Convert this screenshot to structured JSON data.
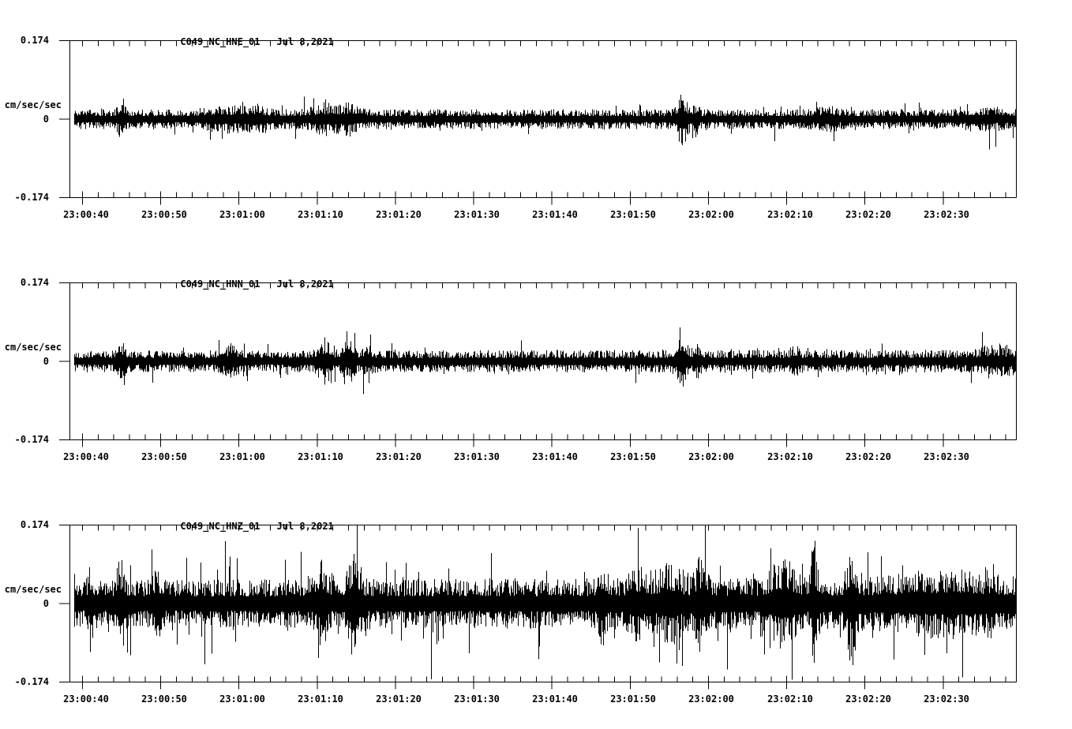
{
  "page": {
    "background_color": "#ffffff",
    "trace_color": "#000000",
    "date_label": "Jul 8,2021"
  },
  "chart_data": [
    {
      "type": "line",
      "chart_kind": "seismogram",
      "title": "C049_NC_HNE_01",
      "date": "Jul 8,2021",
      "ylabel": "cm/sec/sec",
      "ylim": [
        -0.174,
        0.174
      ],
      "yticks": [
        0.174,
        0,
        -0.174
      ],
      "ytick_labels": [
        "0.174",
        "0",
        "-0.174"
      ],
      "x_start": "23:00:38",
      "x_end": "23:02:39",
      "x_major_tick_seconds": 10,
      "x_minor_tick_seconds": 2,
      "x_tick_labels": [
        "23:00:40",
        "23:00:50",
        "23:01:00",
        "23:01:10",
        "23:01:20",
        "23:01:30",
        "23:01:40",
        "23:01:50",
        "23:02:00",
        "23:02:10",
        "23:02:20",
        "23:02:30"
      ],
      "grid": false,
      "legend": false,
      "waveform_model": {
        "seed": 11,
        "base_amplitude": 0.022,
        "max_amplitude": 0.08,
        "amplitude_ramp": 0.0,
        "spike_probability": 0.05,
        "spike_gain": 1.0,
        "envelope_bumps": [
          {
            "t": 45.0,
            "amp": 0.03,
            "width": 0.5
          },
          {
            "t": 58.0,
            "amp": 0.01,
            "width": 2.5
          },
          {
            "t": 62.0,
            "amp": 0.012,
            "width": 2.0
          },
          {
            "t": 71.0,
            "amp": 0.016,
            "width": 2.0
          },
          {
            "t": 74.0,
            "amp": 0.016,
            "width": 1.2
          },
          {
            "t": 116.6,
            "amp": 0.042,
            "width": 0.7
          },
          {
            "t": 118.3,
            "amp": 0.02,
            "width": 0.5
          },
          {
            "t": 135.0,
            "amp": 0.01,
            "width": 1.5
          },
          {
            "t": 155.0,
            "amp": 0.008,
            "width": 3.0
          }
        ]
      }
    },
    {
      "type": "line",
      "chart_kind": "seismogram",
      "title": "C049_NC_HNN_01",
      "date": "Jul 8,2021",
      "ylabel": "cm/sec/sec",
      "ylim": [
        -0.174,
        0.174
      ],
      "yticks": [
        0.174,
        0,
        -0.174
      ],
      "ytick_labels": [
        "0.174",
        "0",
        "-0.174"
      ],
      "x_start": "23:00:38",
      "x_end": "23:02:39",
      "x_major_tick_seconds": 10,
      "x_minor_tick_seconds": 2,
      "x_tick_labels": [
        "23:00:40",
        "23:00:50",
        "23:01:00",
        "23:01:10",
        "23:01:20",
        "23:01:30",
        "23:01:40",
        "23:01:50",
        "23:02:00",
        "23:02:10",
        "23:02:20",
        "23:02:30"
      ],
      "grid": false,
      "legend": false,
      "waveform_model": {
        "seed": 22,
        "base_amplitude": 0.024,
        "max_amplitude": 0.075,
        "amplitude_ramp": 0.05,
        "spike_probability": 0.05,
        "spike_gain": 1.0,
        "envelope_bumps": [
          {
            "t": 45.0,
            "amp": 0.026,
            "width": 0.5
          },
          {
            "t": 59.0,
            "amp": 0.014,
            "width": 1.2
          },
          {
            "t": 70.8,
            "amp": 0.03,
            "width": 1.0
          },
          {
            "t": 74.0,
            "amp": 0.024,
            "width": 0.9
          },
          {
            "t": 76.5,
            "amp": 0.014,
            "width": 0.7
          },
          {
            "t": 116.6,
            "amp": 0.034,
            "width": 0.8
          },
          {
            "t": 118.5,
            "amp": 0.018,
            "width": 0.5
          },
          {
            "t": 131.0,
            "amp": 0.016,
            "width": 0.6
          },
          {
            "t": 157.0,
            "amp": 0.012,
            "width": 2.5
          }
        ]
      }
    },
    {
      "type": "line",
      "chart_kind": "seismogram",
      "title": "C049_NC_HNZ_01",
      "date": "Jul 8,2021",
      "ylabel": "cm/sec/sec",
      "ylim": [
        -0.174,
        0.174
      ],
      "yticks": [
        0.174,
        0,
        -0.174
      ],
      "ytick_labels": [
        "0.174",
        "0",
        "-0.174"
      ],
      "x_start": "23:00:38",
      "x_end": "23:02:39",
      "x_major_tick_seconds": 10,
      "x_minor_tick_seconds": 2,
      "x_tick_labels": [
        "23:00:40",
        "23:00:50",
        "23:01:00",
        "23:01:10",
        "23:01:20",
        "23:01:30",
        "23:01:40",
        "23:01:50",
        "23:02:00",
        "23:02:10",
        "23:02:20",
        "23:02:30"
      ],
      "grid": false,
      "legend": false,
      "waveform_model": {
        "seed": 37,
        "base_amplitude": 0.052,
        "max_amplitude": 0.174,
        "amplitude_ramp": 0.15,
        "spike_probability": 0.1,
        "spike_gain": 1.4,
        "envelope_bumps": [
          {
            "t": 41.0,
            "amp": 0.05,
            "width": 0.35
          },
          {
            "t": 45.0,
            "amp": 0.055,
            "width": 0.5
          },
          {
            "t": 49.5,
            "amp": 0.03,
            "width": 0.7
          },
          {
            "t": 70.5,
            "amp": 0.05,
            "width": 0.8
          },
          {
            "t": 74.7,
            "amp": 0.07,
            "width": 0.9
          },
          {
            "t": 106.5,
            "amp": 0.045,
            "width": 0.6
          },
          {
            "t": 111.0,
            "amp": 0.03,
            "width": 1.2
          },
          {
            "t": 115.0,
            "amp": 0.04,
            "width": 1.5
          },
          {
            "t": 119.0,
            "amp": 0.055,
            "width": 0.8
          },
          {
            "t": 129.5,
            "amp": 0.045,
            "width": 1.8
          },
          {
            "t": 133.5,
            "amp": 0.085,
            "width": 0.4
          },
          {
            "t": 138.3,
            "amp": 0.08,
            "width": 0.7
          },
          {
            "t": 150.0,
            "amp": 0.02,
            "width": 6.0
          }
        ]
      }
    }
  ]
}
